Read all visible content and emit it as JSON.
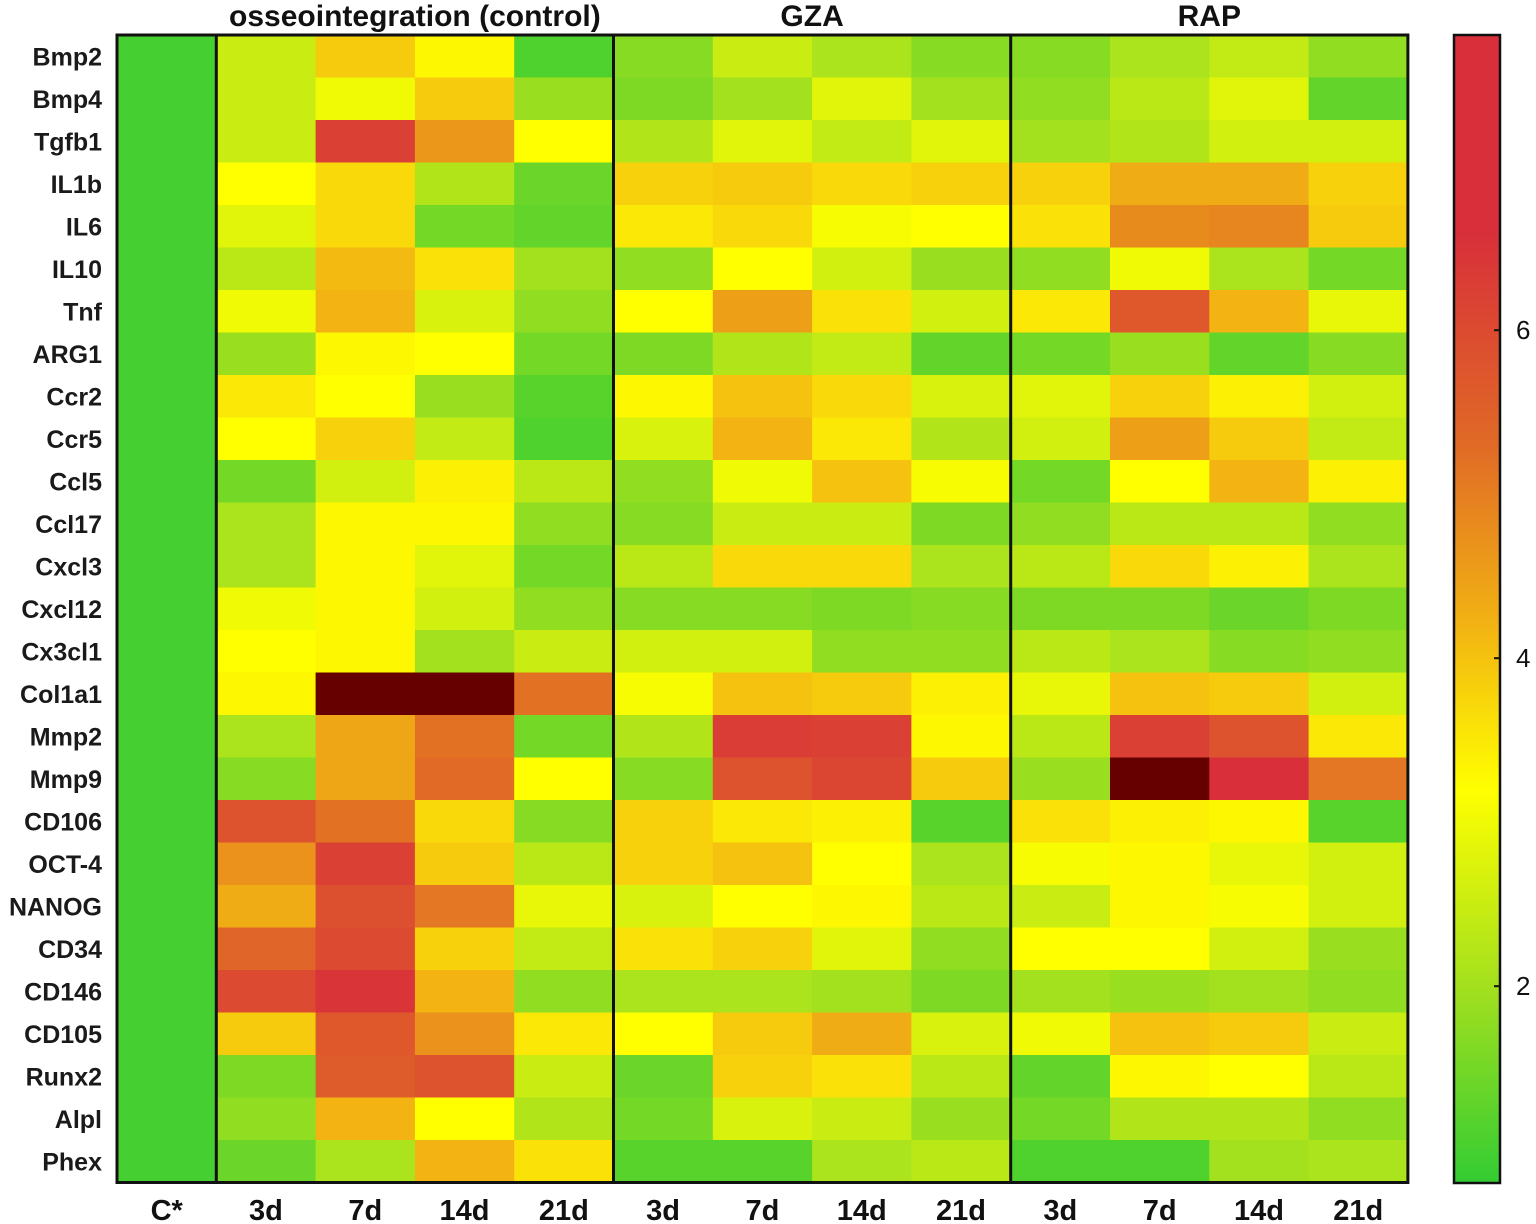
{
  "chart_data": {
    "type": "heatmap",
    "groups": [
      "osseointegration (control)",
      "GZA",
      "RAP"
    ],
    "columns": [
      "C*",
      "3d",
      "7d",
      "14d",
      "21d",
      "3d",
      "7d",
      "14d",
      "21d",
      "3d",
      "7d",
      "14d",
      "21d"
    ],
    "column_group": [
      null,
      0,
      0,
      0,
      0,
      1,
      1,
      1,
      1,
      2,
      2,
      2,
      2
    ],
    "rows": [
      "Bmp2",
      "Bmp4",
      "Tgfb1",
      "IL1b",
      "IL6",
      "IL10",
      "Tnf",
      "ARG1",
      "Ccr2",
      "Ccr5",
      "Ccl5",
      "Ccl17",
      "Cxcl3",
      "Cxcl12",
      "Cx3cl1",
      "Col1a1",
      "Mmp2",
      "Mmp9",
      "CD106",
      "OCT-4",
      "NANOG",
      "CD34",
      "CD146",
      "CD105",
      "Runx2",
      "Alpl",
      "Phex"
    ],
    "values": [
      [
        1,
        2.5,
        3.9,
        3.3,
        1.1,
        1.7,
        2.5,
        2.1,
        1.7,
        1.7,
        2.1,
        2.4,
        1.8
      ],
      [
        1,
        2.5,
        3.0,
        3.9,
        1.9,
        1.6,
        2.0,
        2.8,
        2.0,
        1.8,
        2.3,
        2.8,
        1.3
      ],
      [
        1,
        2.5,
        6.2,
        4.6,
        3.2,
        2.2,
        2.8,
        2.4,
        2.8,
        2.0,
        2.2,
        2.6,
        2.6
      ],
      [
        1,
        3.2,
        3.7,
        2.2,
        1.4,
        3.8,
        3.9,
        3.7,
        3.8,
        3.8,
        4.3,
        4.3,
        3.8
      ],
      [
        1,
        2.8,
        3.7,
        1.5,
        1.3,
        3.5,
        3.7,
        3.1,
        3.2,
        3.6,
        4.8,
        4.9,
        3.9
      ],
      [
        1,
        2.3,
        4.1,
        3.6,
        2.0,
        1.8,
        3.2,
        2.6,
        1.9,
        1.8,
        3.0,
        2.1,
        1.5
      ],
      [
        1,
        3.0,
        4.2,
        2.7,
        1.8,
        3.2,
        4.5,
        3.6,
        2.6,
        3.5,
        5.7,
        4.2,
        2.9
      ],
      [
        1,
        1.9,
        3.3,
        3.2,
        1.5,
        1.6,
        2.2,
        2.4,
        1.3,
        1.5,
        1.9,
        1.3,
        1.7
      ],
      [
        1,
        3.5,
        3.2,
        1.9,
        1.2,
        3.3,
        4.0,
        3.7,
        2.7,
        2.8,
        3.8,
        3.4,
        2.6
      ],
      [
        1,
        3.2,
        3.8,
        2.4,
        1.1,
        2.7,
        4.2,
        3.5,
        2.2,
        2.6,
        4.5,
        3.9,
        2.4
      ],
      [
        1,
        1.5,
        2.6,
        3.4,
        2.3,
        1.8,
        3.0,
        4.0,
        3.1,
        1.5,
        3.2,
        4.2,
        3.4
      ],
      [
        1,
        2.1,
        3.3,
        3.3,
        1.8,
        1.7,
        2.5,
        2.5,
        1.6,
        1.8,
        2.3,
        2.3,
        1.8
      ],
      [
        1,
        2.1,
        3.3,
        2.8,
        1.5,
        2.3,
        3.7,
        3.7,
        2.1,
        2.3,
        3.7,
        3.4,
        2.1
      ],
      [
        1,
        3.0,
        3.3,
        2.6,
        1.8,
        1.7,
        1.7,
        1.6,
        1.7,
        1.6,
        1.6,
        1.4,
        1.6
      ],
      [
        1,
        3.2,
        3.3,
        2.0,
        2.5,
        2.6,
        2.6,
        1.8,
        1.8,
        2.3,
        2.1,
        1.7,
        1.8
      ],
      [
        1,
        3.3,
        7.8,
        7.8,
        5.2,
        3.1,
        4.0,
        3.9,
        3.4,
        2.9,
        4.0,
        3.9,
        2.6
      ],
      [
        1,
        2.1,
        4.4,
        5.2,
        1.5,
        2.2,
        6.3,
        6.2,
        3.3,
        2.3,
        6.2,
        5.8,
        3.5
      ],
      [
        1,
        1.7,
        4.4,
        5.3,
        3.2,
        1.7,
        5.8,
        6.1,
        3.9,
        1.9,
        7.8,
        6.7,
        5.1
      ],
      [
        1,
        5.8,
        5.2,
        3.7,
        1.7,
        3.8,
        3.5,
        3.4,
        1.2,
        3.6,
        3.4,
        3.3,
        1.2
      ],
      [
        1,
        4.7,
        6.2,
        3.9,
        2.3,
        3.8,
        4.0,
        3.2,
        2.1,
        3.1,
        3.3,
        2.9,
        2.6
      ],
      [
        1,
        4.3,
        5.9,
        5.1,
        2.9,
        2.7,
        3.2,
        3.3,
        2.3,
        2.5,
        3.3,
        3.1,
        2.6
      ],
      [
        1,
        5.4,
        6.0,
        3.8,
        2.4,
        3.6,
        3.8,
        2.8,
        1.8,
        3.2,
        3.2,
        2.6,
        1.9
      ],
      [
        1,
        6.0,
        6.5,
        4.2,
        1.8,
        2.1,
        2.1,
        2.0,
        1.6,
        2.0,
        1.9,
        2.0,
        1.8
      ],
      [
        1,
        3.9,
        5.7,
        4.7,
        3.5,
        3.2,
        3.9,
        4.3,
        2.7,
        3.0,
        4.0,
        3.9,
        2.5
      ],
      [
        1,
        1.6,
        5.6,
        5.8,
        2.5,
        1.4,
        3.8,
        3.6,
        2.3,
        1.3,
        3.3,
        3.2,
        2.3
      ],
      [
        1,
        1.8,
        4.2,
        3.2,
        2.2,
        1.5,
        2.7,
        2.5,
        1.9,
        1.5,
        2.2,
        2.2,
        1.8
      ],
      [
        1,
        1.4,
        2.1,
        4.2,
        3.6,
        1.2,
        1.2,
        2.1,
        2.3,
        1.1,
        1.1,
        2.0,
        2.1
      ]
    ],
    "colorbar": {
      "ticks": [
        2,
        4,
        6
      ],
      "range": [
        0.8,
        7.8
      ],
      "colors": {
        "low": "#33cc33",
        "mid_low": "#a3e01e",
        "mid": "#ffff00",
        "mid_high": "#f2b313",
        "high_1": "#e06a26",
        "high": "#d82f3a",
        "saturated": "#660000"
      }
    }
  }
}
